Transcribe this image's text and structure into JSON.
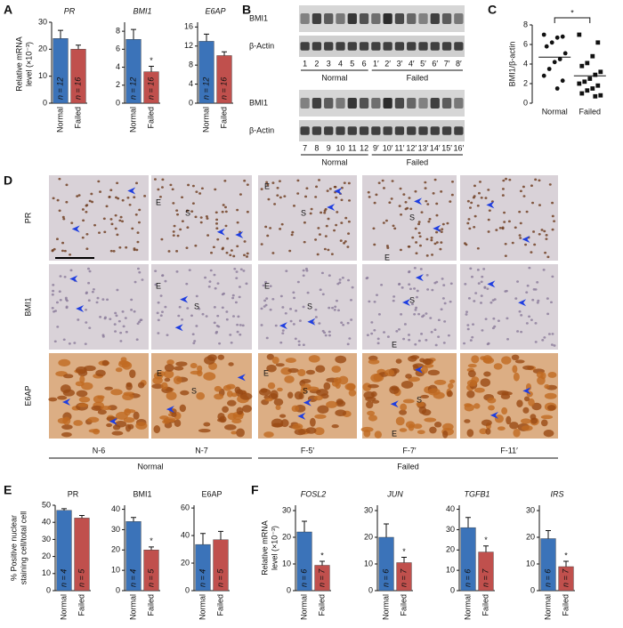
{
  "panels": {
    "A": {
      "letter": "A",
      "y_label": [
        "Relative mRNA",
        "level (×10⁻³)"
      ]
    },
    "B": {
      "letter": "B",
      "blots": [
        {
          "rows": [
            "BMI1",
            "β-Actin"
          ],
          "groups": [
            {
              "name": "Normal",
              "lanes": [
                "1",
                "2",
                "3",
                "4",
                "5",
                "6"
              ]
            },
            {
              "name": "Failed",
              "lanes": [
                "1′",
                "2′",
                "3′",
                "4′",
                "5′",
                "6′",
                "7′",
                "8′"
              ]
            }
          ]
        },
        {
          "rows": [
            "BMI1",
            "β-Actin"
          ],
          "groups": [
            {
              "name": "Normal",
              "lanes": [
                "7",
                "8",
                "9",
                "10",
                "11",
                "12"
              ]
            },
            {
              "name": "Failed",
              "lanes": [
                "9′",
                "10′",
                "11′",
                "12′",
                "13′",
                "14′",
                "15′",
                "16′"
              ]
            }
          ]
        }
      ]
    },
    "C": {
      "letter": "C"
    },
    "D": {
      "letter": "D",
      "rows": [
        "PR",
        "BMI1",
        "E6AP"
      ],
      "columns": [
        "N-6",
        "N-7",
        "F-5′",
        "F-7′",
        "F-11′"
      ],
      "groups": [
        {
          "name": "Normal"
        },
        {
          "name": "Failed"
        }
      ],
      "labels": [
        "E",
        "S",
        "E",
        "S",
        "S",
        "E",
        "E",
        "S",
        "E",
        "S",
        "S",
        "E",
        "E",
        "S",
        "E",
        "S",
        "S",
        "E"
      ]
    },
    "E": {
      "letter": "E",
      "y_label": [
        "% Positive nuclear",
        "staining cell/total cell"
      ]
    },
    "F": {
      "letter": "F",
      "y_label": [
        "Relative mRNA",
        "level (×10⁻³)"
      ]
    }
  },
  "chart_data": [
    {
      "type": "bar",
      "title": "PR",
      "italic": true,
      "categories": [
        "Normal",
        "Failed"
      ],
      "values": [
        24,
        20
      ],
      "errors": [
        3,
        1.5
      ],
      "colors": [
        "#3b73b9",
        "#c0504d"
      ],
      "bar_labels": [
        "n = 12",
        "n = 16"
      ],
      "significance": [
        null,
        null
      ],
      "ylim": [
        0,
        30
      ],
      "yticks": [
        0,
        10,
        20,
        30
      ]
    },
    {
      "type": "bar",
      "title": "BMI1",
      "italic": true,
      "categories": [
        "Normal",
        "Failed"
      ],
      "values": [
        7.1,
        3.5
      ],
      "errors": [
        1.1,
        0.6
      ],
      "colors": [
        "#3b73b9",
        "#c0504d"
      ],
      "bar_labels": [
        "n = 12",
        "n = 16"
      ],
      "significance": [
        null,
        "*"
      ],
      "ylim": [
        0,
        9
      ],
      "yticks": [
        0,
        2,
        4,
        6,
        8
      ]
    },
    {
      "type": "bar",
      "title": "E6AP",
      "italic": true,
      "categories": [
        "Normal",
        "Failed"
      ],
      "values": [
        13,
        10
      ],
      "errors": [
        1.5,
        0.8
      ],
      "colors": [
        "#3b73b9",
        "#c0504d"
      ],
      "bar_labels": [
        "n = 12",
        "n = 16"
      ],
      "significance": [
        null,
        null
      ],
      "ylim": [
        0,
        17
      ],
      "yticks": [
        0,
        4,
        8,
        12,
        16
      ]
    },
    {
      "type": "dot",
      "y_label": "BMI1/β-actin",
      "categories": [
        "Normal",
        "Failed"
      ],
      "groups": [
        [
          7,
          6.8,
          6.7,
          6.2,
          5.8,
          5.1,
          4.5,
          4.2,
          3.5,
          2.8,
          2.3,
          1.5
        ],
        [
          7,
          6.2,
          4.8,
          4.1,
          3.8,
          3.2,
          2.9,
          2.5,
          2.2,
          2,
          1.8,
          1.5,
          1.3,
          1,
          0.8,
          0.7
        ]
      ],
      "means": [
        4.7,
        2.8
      ],
      "markers": [
        "circle",
        "square"
      ],
      "significance": "*",
      "ylim": [
        0,
        8
      ],
      "yticks": [
        0,
        2,
        4,
        6,
        8
      ]
    },
    {
      "type": "bar",
      "title": "PR",
      "italic": false,
      "categories": [
        "Normal",
        "Failed"
      ],
      "values": [
        47,
        42.5
      ],
      "errors": [
        1,
        1.5
      ],
      "colors": [
        "#3b73b9",
        "#c0504d"
      ],
      "bar_labels": [
        "n = 4",
        "n = 5"
      ],
      "significance": [
        null,
        null
      ],
      "ylim": [
        0,
        50
      ],
      "yticks": [
        0,
        10,
        20,
        30,
        40,
        50
      ]
    },
    {
      "type": "bar",
      "title": "BMI1",
      "italic": false,
      "categories": [
        "Normal",
        "Failed"
      ],
      "values": [
        34,
        20
      ],
      "errors": [
        2,
        1.5
      ],
      "colors": [
        "#3b73b9",
        "#c0504d"
      ],
      "bar_labels": [
        "n = 4",
        "n = 5"
      ],
      "significance": [
        null,
        "*"
      ],
      "ylim": [
        0,
        42
      ],
      "yticks": [
        0,
        10,
        20,
        30,
        40
      ]
    },
    {
      "type": "bar",
      "title": "E6AP",
      "italic": false,
      "categories": [
        "Normal",
        "Failed"
      ],
      "values": [
        33.5,
        37
      ],
      "errors": [
        8,
        6
      ],
      "colors": [
        "#3b73b9",
        "#c0504d"
      ],
      "bar_labels": [
        "n = 4",
        "n = 5"
      ],
      "significance": [
        null,
        null
      ],
      "ylim": [
        0,
        62
      ],
      "yticks": [
        0,
        20,
        40,
        60
      ]
    },
    {
      "type": "bar",
      "title": "FOSL2",
      "italic": true,
      "categories": [
        "Normal",
        "Failed"
      ],
      "values": [
        22,
        9.5
      ],
      "errors": [
        4,
        1.5
      ],
      "colors": [
        "#3b73b9",
        "#c0504d"
      ],
      "bar_labels": [
        "n = 6",
        "n = 7"
      ],
      "significance": [
        null,
        "*"
      ],
      "ylim": [
        0,
        32
      ],
      "yticks": [
        0,
        10,
        20,
        30
      ]
    },
    {
      "type": "bar",
      "title": "JUN",
      "italic": true,
      "categories": [
        "Normal",
        "Failed"
      ],
      "values": [
        20,
        10.5
      ],
      "errors": [
        5,
        2
      ],
      "colors": [
        "#3b73b9",
        "#c0504d"
      ],
      "bar_labels": [
        "n = 6",
        "n = 7"
      ],
      "significance": [
        null,
        "*"
      ],
      "ylim": [
        0,
        32
      ],
      "yticks": [
        0,
        10,
        20,
        30
      ]
    },
    {
      "type": "bar",
      "title": "TGFB1",
      "italic": true,
      "categories": [
        "Normal",
        "Failed"
      ],
      "values": [
        31,
        19
      ],
      "errors": [
        5,
        3
      ],
      "colors": [
        "#3b73b9",
        "#c0504d"
      ],
      "bar_labels": [
        "n = 6",
        "n = 7"
      ],
      "significance": [
        null,
        "*"
      ],
      "ylim": [
        0,
        42
      ],
      "yticks": [
        0,
        10,
        20,
        30,
        40
      ]
    },
    {
      "type": "bar",
      "title": "IRS",
      "italic": true,
      "categories": [
        "Normal",
        "Failed"
      ],
      "values": [
        19.5,
        9
      ],
      "errors": [
        3,
        2
      ],
      "colors": [
        "#3b73b9",
        "#c0504d"
      ],
      "bar_labels": [
        "n = 6",
        "n = 7"
      ],
      "significance": [
        null,
        "*"
      ],
      "ylim": [
        0,
        32
      ],
      "yticks": [
        0,
        10,
        20,
        30
      ]
    }
  ]
}
